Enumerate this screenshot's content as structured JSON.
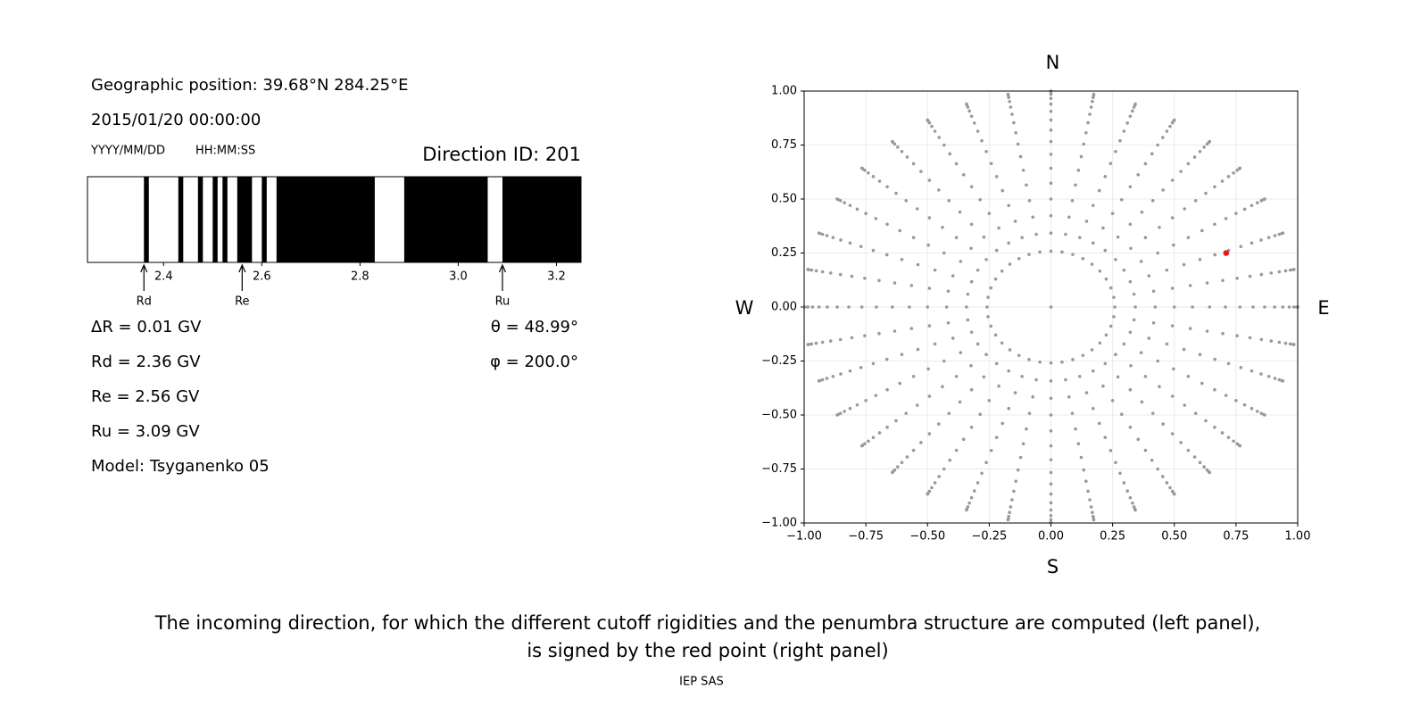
{
  "header": {
    "position": "Geographic position: 39.68°N 284.25°E",
    "datetime": "2015/01/20 00:00:00",
    "date_format": "YYYY/MM/DD",
    "time_format": "HH:MM:SS",
    "direction_id": "Direction ID: 201"
  },
  "chart_data": [
    {
      "type": "penumbra",
      "xlim": [
        2.245,
        3.25
      ],
      "xticks": [
        2.4,
        2.6,
        2.8,
        {
          "value": 3,
          "label": "3.0"
        },
        3.2
      ],
      "color": "#000000",
      "bands": [
        [
          2.36,
          2.37
        ],
        [
          2.43,
          2.44
        ],
        [
          2.47,
          2.48
        ],
        [
          2.5,
          2.51
        ],
        [
          2.52,
          2.53
        ],
        [
          2.55,
          2.58
        ],
        [
          2.6,
          2.61
        ],
        [
          2.63,
          2.83
        ],
        [
          2.89,
          3.06
        ],
        [
          3.09,
          3.25
        ]
      ],
      "markers": {
        "labels": [
          "Rd",
          "Re",
          "Ru"
        ],
        "values": [
          2.36,
          2.56,
          3.09
        ]
      }
    },
    {
      "type": "scatter",
      "xlim": [
        -1,
        1
      ],
      "ylim": [
        -1,
        1
      ],
      "xticks": [
        {
          "value": -1,
          "label": "−1.00"
        },
        {
          "value": -0.75,
          "label": "−0.75"
        },
        {
          "value": -0.5,
          "label": "−0.50"
        },
        {
          "value": -0.25,
          "label": "−0.25"
        },
        {
          "value": 0,
          "label": "0.00"
        },
        0.25,
        {
          "value": 0.5,
          "label": "0.50"
        },
        0.75,
        {
          "value": 1,
          "label": "1.00"
        }
      ],
      "yticks": [
        {
          "value": -1,
          "label": "−1.00"
        },
        {
          "value": -0.75,
          "label": "−0.75"
        },
        {
          "value": -0.5,
          "label": "−0.50"
        },
        {
          "value": -0.25,
          "label": "−0.25"
        },
        {
          "value": 0,
          "label": "0.00"
        },
        0.25,
        {
          "value": 0.5,
          "label": "0.50"
        },
        0.75,
        {
          "value": 1,
          "label": "1.00"
        }
      ],
      "grid": true,
      "compass": {
        "north": "N",
        "south": "S",
        "west": "W",
        "east": "E"
      },
      "directions": {
        "zenith": [
          0,
          15,
          20,
          25,
          30,
          35,
          40,
          45,
          50,
          55,
          60,
          65,
          70,
          75,
          80,
          85,
          90
        ],
        "azimuth": [
          0,
          10,
          20,
          30,
          40,
          50,
          60,
          70,
          80,
          90,
          100,
          110,
          120,
          130,
          140,
          150,
          160,
          170,
          180,
          190,
          200,
          210,
          220,
          230,
          240,
          250,
          260,
          270,
          280,
          290,
          300,
          310,
          320,
          330,
          340,
          350
        ],
        "color": "#999999"
      },
      "highlight": {
        "x": 0.71,
        "y": 0.25,
        "color": "#e41a1c"
      }
    }
  ],
  "info": {
    "left": [
      "ΔR = 0.01 GV",
      "Rd = 2.36 GV",
      "Re = 2.56 GV",
      "Ru = 3.09 GV",
      "Model: Tsyganenko 05"
    ],
    "right": [
      "θ = 48.99°",
      "φ = 200.0°"
    ]
  },
  "caption": [
    "The incoming direction, for which the different cutoff rigidities and the penumbra structure are computed (left panel),",
    "is signed by the red point (right panel)"
  ],
  "footer": "IEP SAS"
}
